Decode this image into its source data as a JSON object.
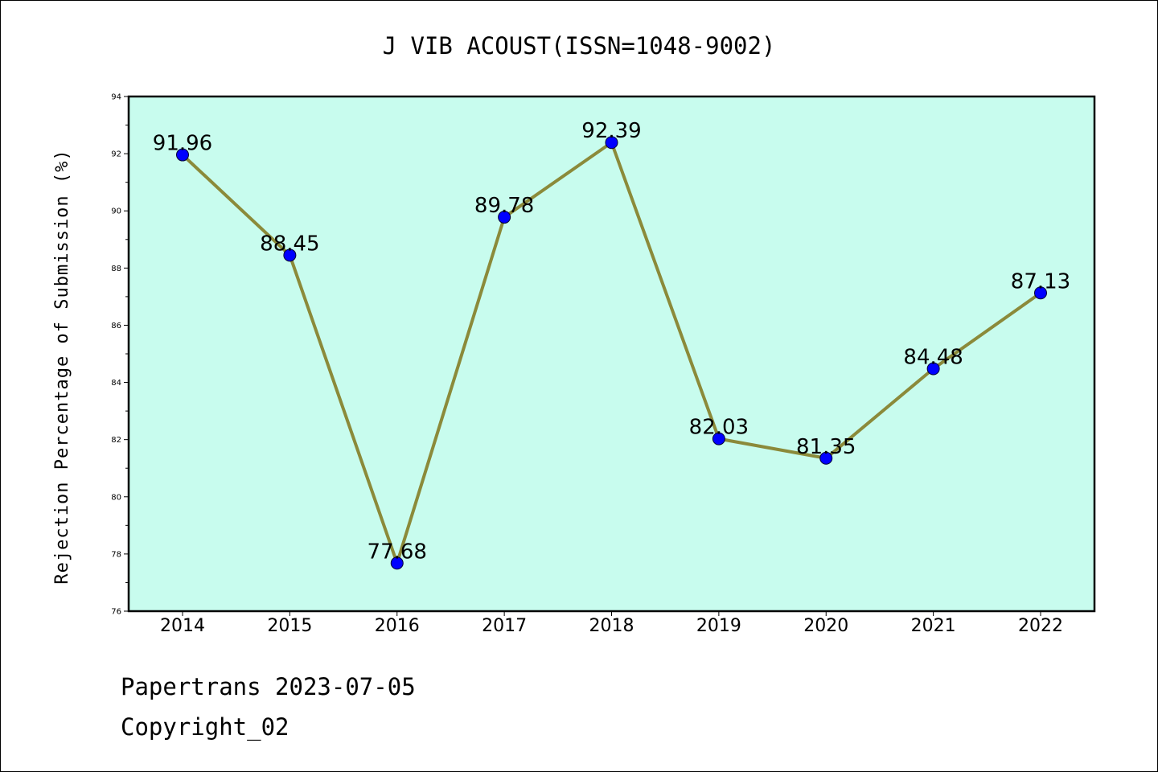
{
  "chart_data": {
    "type": "line",
    "title": "J VIB ACOUST(ISSN=1048-9002)",
    "xlabel": "",
    "ylabel": "Rejection Percentage of Submission (%)",
    "categories": [
      "2014",
      "2015",
      "2016",
      "2017",
      "2018",
      "2019",
      "2020",
      "2021",
      "2022"
    ],
    "values": [
      91.96,
      88.45,
      77.68,
      89.78,
      92.39,
      82.03,
      81.35,
      84.48,
      87.13
    ],
    "data_labels": [
      "91.96",
      "88.45",
      "77.68",
      "89.78",
      "92.39",
      "82.03",
      "81.35",
      "84.48",
      "87.13"
    ],
    "ylim": [
      76,
      94
    ],
    "yticks": [
      "76",
      "78",
      "80",
      "82",
      "84",
      "86",
      "88",
      "90",
      "92",
      "94"
    ],
    "grid": false,
    "colors": {
      "plot_background": "#c8fcee",
      "line": "#8b8a3a",
      "marker": "#0000ff"
    }
  },
  "footer": {
    "line1": "Papertrans 2023-07-05",
    "line2": "Copyright_02"
  }
}
